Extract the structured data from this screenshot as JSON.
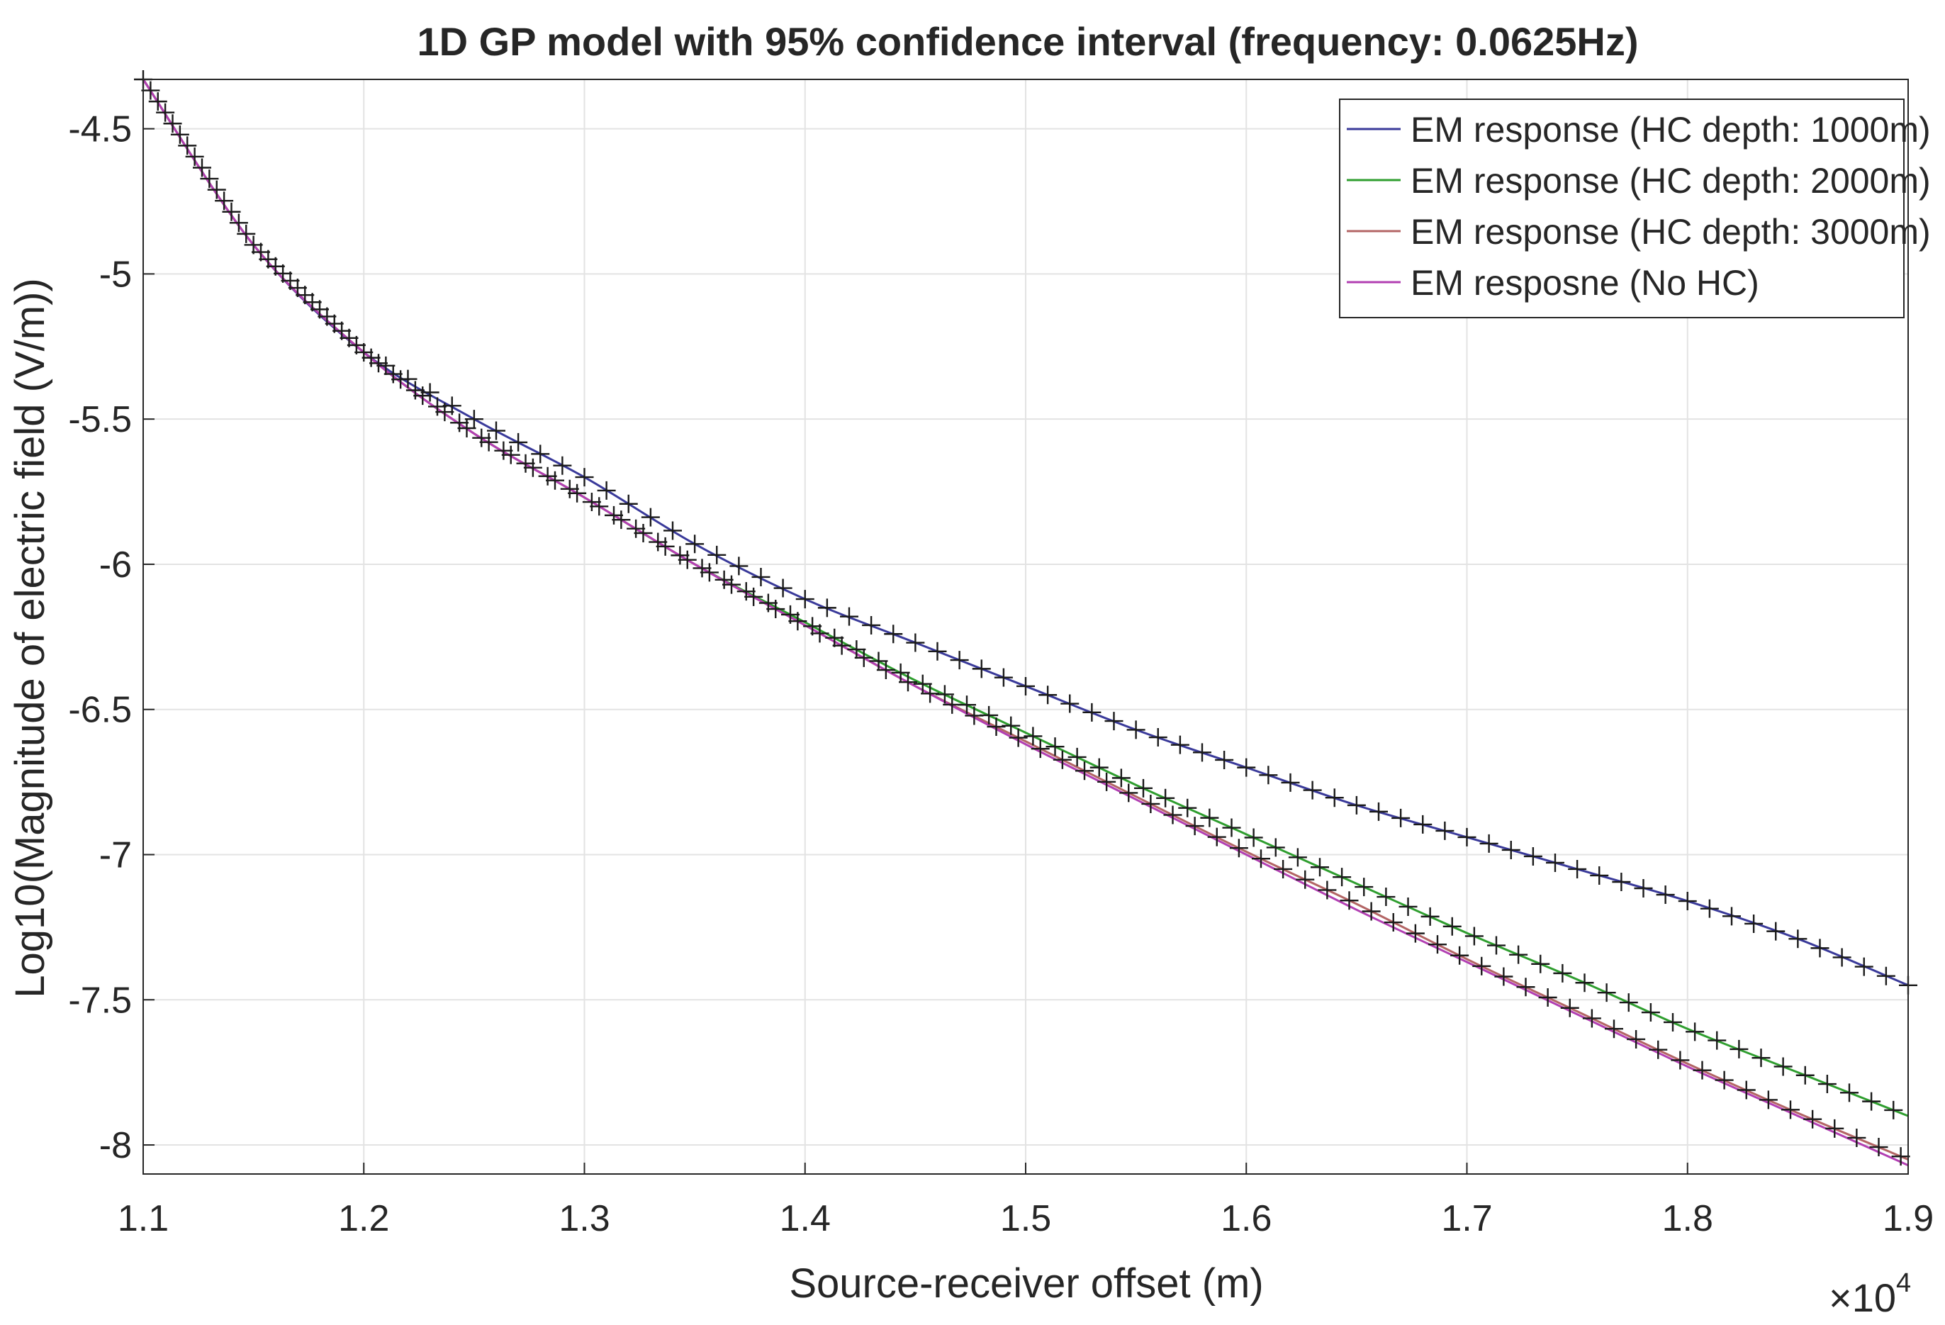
{
  "chart_data": {
    "type": "line",
    "title": "1D GP model with 95% confidence interval (frequency: 0.0625Hz)",
    "xlabel": "Source-receiver offset (m)",
    "ylabel": "Log10(Magnitude of electric field (V/m))",
    "x_exponent_label": "×10",
    "x_exponent_power": "4",
    "xlim": [
      11000,
      19000
    ],
    "ylim": [
      -8.1,
      -4.33
    ],
    "x_ticks": [
      11000,
      12000,
      13000,
      14000,
      15000,
      16000,
      17000,
      18000,
      19000
    ],
    "x_tick_labels": [
      "1.1",
      "1.2",
      "1.3",
      "1.4",
      "1.5",
      "1.6",
      "1.7",
      "1.8",
      "1.9"
    ],
    "y_ticks": [
      -4.5,
      -5,
      -5.5,
      -6,
      -6.5,
      -7,
      -7.5,
      -8
    ],
    "y_tick_labels": [
      "-4.5",
      "-5",
      "-5.5",
      "-6",
      "-6.5",
      "-7",
      "-7.5",
      "-8"
    ],
    "grid": true,
    "legend_position": "top-right",
    "series": [
      {
        "name": "EM response (HC depth: 1000m)",
        "color": "#3a3a9a",
        "x": [
          11000,
          11500,
          12000,
          12500,
          13000,
          13500,
          14000,
          14500,
          15000,
          15500,
          16000,
          16500,
          17000,
          17500,
          18000,
          18500,
          19000
        ],
        "y": [
          -4.33,
          -4.9,
          -5.27,
          -5.5,
          -5.7,
          -5.93,
          -6.12,
          -6.27,
          -6.42,
          -6.57,
          -6.7,
          -6.83,
          -6.94,
          -7.05,
          -7.16,
          -7.29,
          -7.45
        ]
      },
      {
        "name": "EM response (HC depth: 2000m)",
        "color": "#2f9e2f",
        "x": [
          11000,
          11500,
          12000,
          12500,
          13000,
          13500,
          14000,
          14500,
          15000,
          15500,
          16000,
          16500,
          17000,
          17500,
          18000,
          18500,
          19000
        ],
        "y": [
          -4.33,
          -4.9,
          -5.27,
          -5.55,
          -5.77,
          -6.0,
          -6.2,
          -6.4,
          -6.58,
          -6.76,
          -6.93,
          -7.1,
          -7.27,
          -7.43,
          -7.6,
          -7.75,
          -7.9
        ]
      },
      {
        "name": "EM response (HC depth: 3000m)",
        "color": "#b36565",
        "x": [
          11000,
          11500,
          12000,
          12500,
          13000,
          13500,
          14000,
          14500,
          15000,
          15500,
          16000,
          16500,
          17000,
          17500,
          18000,
          18500,
          19000
        ],
        "y": [
          -4.33,
          -4.9,
          -5.27,
          -5.55,
          -5.77,
          -6.0,
          -6.21,
          -6.42,
          -6.61,
          -6.8,
          -6.99,
          -7.17,
          -7.36,
          -7.54,
          -7.72,
          -7.89,
          -8.05
        ]
      },
      {
        "name": "EM resposne (No HC)",
        "color": "#b23fb2",
        "x": [
          11000,
          11500,
          12000,
          12500,
          13000,
          13500,
          14000,
          14500,
          15000,
          15500,
          16000,
          16500,
          17000,
          17500,
          18000,
          18500,
          19000
        ],
        "y": [
          -4.33,
          -4.9,
          -5.27,
          -5.55,
          -5.77,
          -6.0,
          -6.21,
          -6.42,
          -6.62,
          -6.81,
          -7.0,
          -7.19,
          -7.37,
          -7.55,
          -7.73,
          -7.9,
          -8.07
        ]
      }
    ],
    "marker_series": [
      {
        "name": "1000m markers",
        "color": "#1a1a1a",
        "of_series": 0
      },
      {
        "name": "2000m markers",
        "color": "#1a1a1a",
        "of_series": 1
      },
      {
        "name": "3000m markers",
        "color": "#1a1a1a",
        "of_series": 2
      }
    ]
  }
}
